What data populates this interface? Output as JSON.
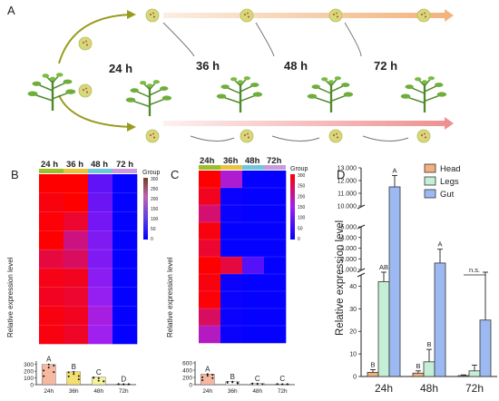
{
  "panels": {
    "A": {
      "letter": "A",
      "times": [
        "24 h",
        "36 h",
        "48 h",
        "72 h"
      ]
    },
    "B": {
      "letter": "B",
      "heatmap_columns": [
        "24 h",
        "36 h",
        "48 h",
        "72 h"
      ],
      "legend": {
        "title": "Group",
        "ticks": [
          "300",
          "250",
          "200",
          "150",
          "100",
          "50",
          "0"
        ]
      },
      "ylabel": "Relative expression level",
      "bar_ticks_y": [
        "300",
        "200",
        "100",
        "0"
      ],
      "bar_categories": [
        "24h",
        "36h",
        "48h",
        "72h"
      ],
      "bar_letters": [
        "A",
        "B",
        "C",
        "D"
      ],
      "colors": {
        "high": "#ff0000",
        "mid": "#a020f0",
        "low": "#0000ff"
      }
    },
    "C": {
      "letter": "C",
      "heatmap_columns": [
        "24h",
        "36h",
        "48h",
        "72h"
      ],
      "legend": {
        "title": "Group",
        "ticks": [
          "300",
          "250",
          "200",
          "150",
          "100",
          "50",
          "0"
        ]
      },
      "ylabel": "Relative expression level",
      "bar_ticks_y": [
        "600",
        "400",
        "200",
        "0"
      ],
      "bar_categories": [
        "24h",
        "36h",
        "48h",
        "72h"
      ],
      "bar_letters": [
        "A",
        "B",
        "C",
        "C"
      ],
      "colors": {
        "high": "#ff0000",
        "mid": "#a020f0",
        "low": "#0000ff"
      }
    },
    "D": {
      "letter": "D",
      "ylabel": "Relative expression level",
      "legend": [
        "Head",
        "Legs",
        "Gut"
      ],
      "categories": [
        "24h",
        "48h",
        "72h"
      ],
      "colors": {
        "Head": "#f3b07f",
        "Legs": "#c4efd6",
        "Gut": "#9db9f2"
      },
      "y_ticks_upper": [
        "13.000",
        "12.000",
        "11.000",
        "10.000"
      ],
      "y_ticks_mid": [
        "5.000",
        "4.000",
        "3.000",
        "2.000",
        "1.000"
      ],
      "y_ticks_lower": [
        "40",
        "30",
        "20",
        "10",
        "0"
      ],
      "letters_24h": [
        "B",
        "AB",
        "A"
      ],
      "letters_48h": [
        "B",
        "B",
        "A"
      ],
      "ns_label": "n.s."
    }
  },
  "chart_data": [
    {
      "type": "heatmap",
      "title": "",
      "columns": [
        "24 h",
        "36 h",
        "48 h",
        "72 h"
      ],
      "values": [
        [
          300,
          300,
          90,
          5
        ],
        [
          290,
          300,
          100,
          5
        ],
        [
          295,
          270,
          110,
          5
        ],
        [
          300,
          220,
          120,
          5
        ],
        [
          260,
          240,
          120,
          5
        ],
        [
          285,
          280,
          130,
          5
        ],
        [
          280,
          270,
          140,
          5
        ],
        [
          290,
          280,
          160,
          5
        ],
        [
          290,
          275,
          150,
          5
        ]
      ]
    },
    {
      "type": "bar",
      "categories": [
        "24h",
        "36h",
        "48h",
        "72h"
      ],
      "values": [
        300,
        190,
        110,
        10
      ],
      "ylabel": "Relative expression level",
      "ylim": [
        0,
        350
      ]
    },
    {
      "type": "heatmap",
      "columns": [
        "24h",
        "36h",
        "48h",
        "72h"
      ],
      "values": [
        [
          300,
          170,
          5,
          5
        ],
        [
          280,
          10,
          5,
          5
        ],
        [
          230,
          10,
          5,
          5
        ],
        [
          290,
          5,
          5,
          5
        ],
        [
          270,
          5,
          5,
          5
        ],
        [
          300,
          260,
          80,
          5
        ],
        [
          290,
          10,
          5,
          5
        ],
        [
          295,
          10,
          5,
          5
        ],
        [
          240,
          10,
          5,
          5
        ],
        [
          180,
          10,
          5,
          5
        ]
      ]
    },
    {
      "type": "bar",
      "categories": [
        "24h",
        "36h",
        "48h",
        "72h"
      ],
      "values": [
        290,
        80,
        30,
        20
      ],
      "ylabel": "Relative expression level",
      "ylim": [
        0,
        650
      ]
    },
    {
      "type": "bar",
      "categories": [
        "24h",
        "48h",
        "72h"
      ],
      "series": [
        {
          "name": "Head",
          "values": [
            1.8,
            1.5,
            0.4
          ],
          "errors": [
            1.2,
            1.0,
            0.3
          ]
        },
        {
          "name": "Legs",
          "values": [
            42,
            6.5,
            2.5
          ],
          "errors": [
            6,
            5.5,
            2.5
          ]
        },
        {
          "name": "Gut",
          "values": [
            11500,
            1600,
            25
          ],
          "errors": [
            900,
            1300,
            21
          ]
        }
      ],
      "ylabel": "Relative expression level",
      "broken_axis": true
    }
  ]
}
